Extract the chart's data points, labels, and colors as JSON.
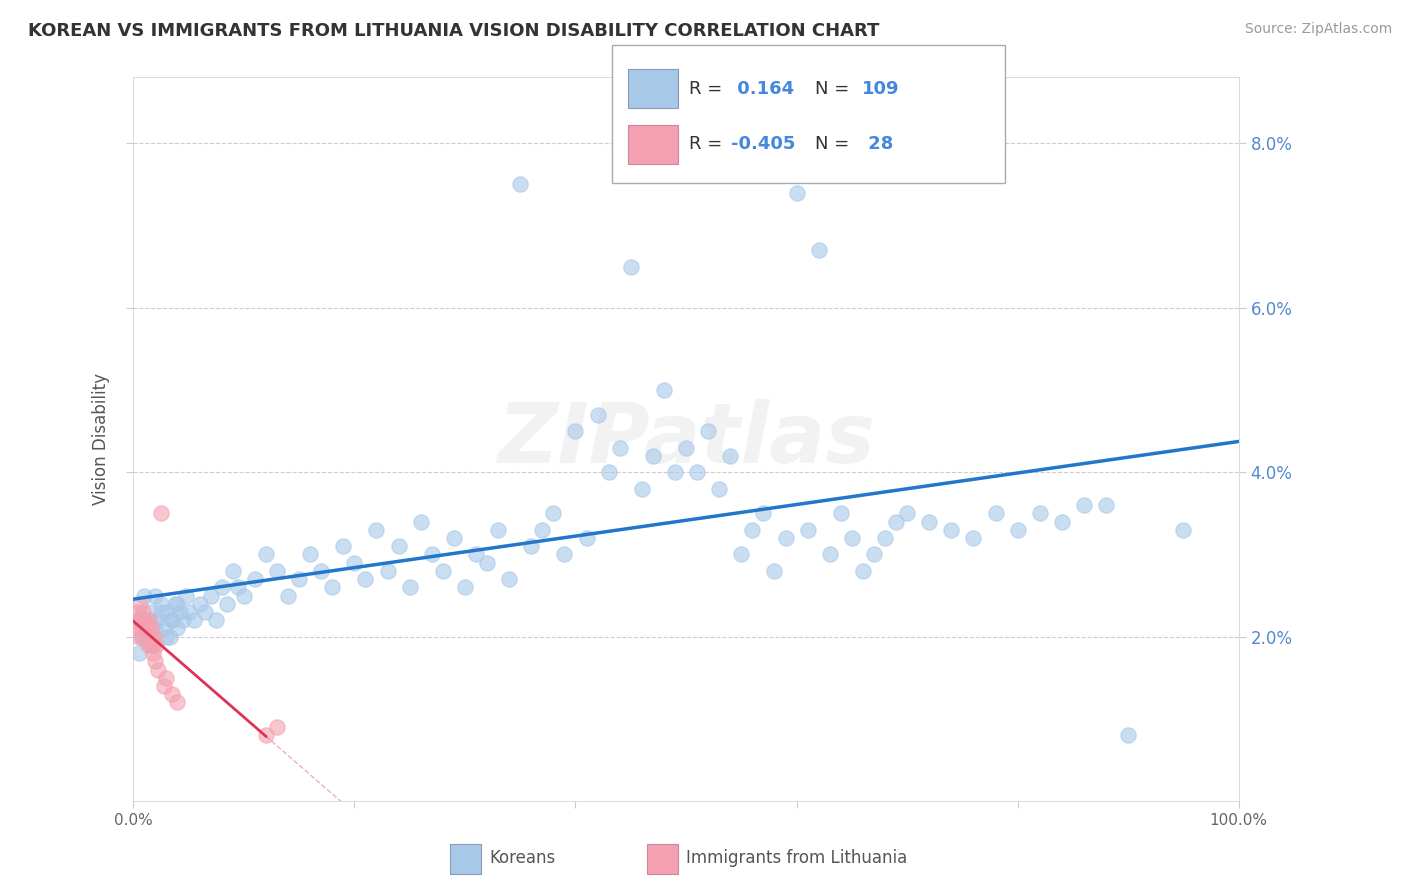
{
  "title": "KOREAN VS IMMIGRANTS FROM LITHUANIA VISION DISABILITY CORRELATION CHART",
  "source": "Source: ZipAtlas.com",
  "ylabel": "Vision Disability",
  "xlim": [
    0,
    1.0
  ],
  "ylim": [
    0,
    0.088
  ],
  "yticks": [
    0.02,
    0.04,
    0.06,
    0.08
  ],
  "ytick_labels": [
    "2.0%",
    "4.0%",
    "6.0%",
    "8.0%"
  ],
  "xticks": [
    0.0,
    0.2,
    0.4,
    0.6,
    0.8,
    1.0
  ],
  "xtick_labels": [
    "0.0%",
    "",
    "",
    "",
    "",
    "100.0%"
  ],
  "korean_color": "#a8c8e8",
  "lithuanian_color": "#f4a0b0",
  "korean_line_color": "#2277cc",
  "lithuanian_line_color": "#dd3355",
  "korean_r": 0.164,
  "korean_n": 109,
  "lithuanian_r": -0.405,
  "lithuanian_n": 28,
  "watermark": "ZIPatlas",
  "background_color": "#ffffff",
  "grid_color": "#cccccc",
  "korean_x": [
    0.005,
    0.008,
    0.01,
    0.012,
    0.015,
    0.018,
    0.02,
    0.022,
    0.025,
    0.028,
    0.03,
    0.033,
    0.035,
    0.038,
    0.04,
    0.042,
    0.045,
    0.048,
    0.05,
    0.055,
    0.06,
    0.065,
    0.07,
    0.075,
    0.08,
    0.085,
    0.09,
    0.095,
    0.1,
    0.11,
    0.12,
    0.13,
    0.14,
    0.15,
    0.16,
    0.17,
    0.18,
    0.19,
    0.2,
    0.21,
    0.22,
    0.23,
    0.24,
    0.25,
    0.26,
    0.27,
    0.28,
    0.29,
    0.3,
    0.31,
    0.32,
    0.33,
    0.34,
    0.35,
    0.36,
    0.37,
    0.38,
    0.39,
    0.4,
    0.41,
    0.42,
    0.43,
    0.44,
    0.45,
    0.46,
    0.47,
    0.48,
    0.49,
    0.5,
    0.51,
    0.52,
    0.53,
    0.54,
    0.55,
    0.56,
    0.57,
    0.58,
    0.59,
    0.6,
    0.61,
    0.62,
    0.63,
    0.64,
    0.65,
    0.66,
    0.67,
    0.68,
    0.69,
    0.7,
    0.72,
    0.74,
    0.76,
    0.78,
    0.8,
    0.82,
    0.84,
    0.86,
    0.88,
    0.9,
    0.95,
    0.005,
    0.008,
    0.01,
    0.015,
    0.02,
    0.025,
    0.03,
    0.035,
    0.04
  ],
  "korean_y": [
    0.022,
    0.02,
    0.025,
    0.021,
    0.023,
    0.019,
    0.025,
    0.022,
    0.024,
    0.021,
    0.023,
    0.02,
    0.022,
    0.024,
    0.021,
    0.023,
    0.022,
    0.025,
    0.023,
    0.022,
    0.024,
    0.023,
    0.025,
    0.022,
    0.026,
    0.024,
    0.028,
    0.026,
    0.025,
    0.027,
    0.03,
    0.028,
    0.025,
    0.027,
    0.03,
    0.028,
    0.026,
    0.031,
    0.029,
    0.027,
    0.033,
    0.028,
    0.031,
    0.026,
    0.034,
    0.03,
    0.028,
    0.032,
    0.026,
    0.03,
    0.029,
    0.033,
    0.027,
    0.075,
    0.031,
    0.033,
    0.035,
    0.03,
    0.045,
    0.032,
    0.047,
    0.04,
    0.043,
    0.065,
    0.038,
    0.042,
    0.05,
    0.04,
    0.043,
    0.04,
    0.045,
    0.038,
    0.042,
    0.03,
    0.033,
    0.035,
    0.028,
    0.032,
    0.074,
    0.033,
    0.067,
    0.03,
    0.035,
    0.032,
    0.028,
    0.03,
    0.032,
    0.034,
    0.035,
    0.034,
    0.033,
    0.032,
    0.035,
    0.033,
    0.035,
    0.034,
    0.036,
    0.036,
    0.008,
    0.033,
    0.018,
    0.02,
    0.022,
    0.019,
    0.021,
    0.023,
    0.02,
    0.022,
    0.024
  ],
  "lith_x": [
    0.002,
    0.003,
    0.004,
    0.005,
    0.006,
    0.007,
    0.008,
    0.009,
    0.01,
    0.011,
    0.012,
    0.013,
    0.014,
    0.015,
    0.016,
    0.017,
    0.018,
    0.019,
    0.02,
    0.021,
    0.022,
    0.025,
    0.028,
    0.03,
    0.035,
    0.04,
    0.12,
    0.13
  ],
  "lith_y": [
    0.022,
    0.021,
    0.023,
    0.02,
    0.024,
    0.022,
    0.021,
    0.023,
    0.022,
    0.02,
    0.021,
    0.019,
    0.022,
    0.02,
    0.021,
    0.019,
    0.018,
    0.02,
    0.017,
    0.019,
    0.016,
    0.035,
    0.014,
    0.015,
    0.013,
    0.012,
    0.008,
    0.009
  ]
}
